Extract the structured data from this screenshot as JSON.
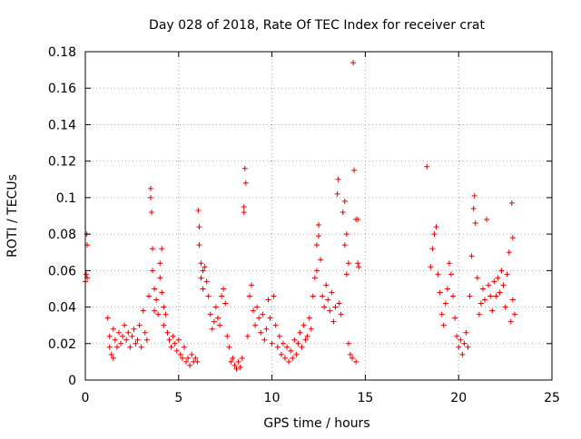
{
  "chart_data": {
    "type": "scatter",
    "title": "Day 028 of 2018, Rate Of TEC Index for receiver crat",
    "xlabel": "GPS time / hours",
    "ylabel": "ROTI / TECUs",
    "xlim": [
      0,
      25
    ],
    "ylim": [
      0,
      0.18
    ],
    "xticks": [
      0,
      5,
      10,
      15,
      20,
      25
    ],
    "yticks": [
      0,
      0.02,
      0.04,
      0.06,
      0.08,
      0.1,
      0.12,
      0.14,
      0.16,
      0.18
    ],
    "xtick_labels": [
      "0",
      "5",
      "10",
      "15",
      "20",
      "25"
    ],
    "ytick_labels": [
      "0",
      "0.02",
      "0.04",
      "0.06",
      "0.08",
      "0.1",
      "0.12",
      "0.14",
      "0.16",
      "0.18"
    ],
    "grid": true,
    "marker": "+",
    "color": "#e00000",
    "series": [
      {
        "points": [
          [
            0.0,
            0.054
          ],
          [
            0.05,
            0.058
          ],
          [
            0.08,
            0.08
          ],
          [
            0.1,
            0.074
          ],
          [
            0.1,
            0.056
          ],
          [
            1.2,
            0.034
          ],
          [
            1.3,
            0.024
          ],
          [
            1.3,
            0.018
          ],
          [
            1.4,
            0.014
          ],
          [
            1.5,
            0.028
          ],
          [
            1.5,
            0.012
          ],
          [
            1.6,
            0.022
          ],
          [
            1.7,
            0.018
          ],
          [
            1.8,
            0.026
          ],
          [
            1.9,
            0.02
          ],
          [
            2.0,
            0.024
          ],
          [
            2.1,
            0.03
          ],
          [
            2.2,
            0.022
          ],
          [
            2.3,
            0.026
          ],
          [
            2.4,
            0.018
          ],
          [
            2.5,
            0.024
          ],
          [
            2.6,
            0.028
          ],
          [
            2.7,
            0.02
          ],
          [
            2.8,
            0.022
          ],
          [
            2.9,
            0.03
          ],
          [
            3.0,
            0.018
          ],
          [
            3.1,
            0.038
          ],
          [
            3.2,
            0.026
          ],
          [
            3.3,
            0.022
          ],
          [
            3.4,
            0.046
          ],
          [
            3.5,
            0.105
          ],
          [
            3.5,
            0.1
          ],
          [
            3.55,
            0.092
          ],
          [
            3.6,
            0.072
          ],
          [
            3.6,
            0.06
          ],
          [
            3.7,
            0.05
          ],
          [
            3.7,
            0.038
          ],
          [
            3.8,
            0.044
          ],
          [
            3.9,
            0.036
          ],
          [
            4.0,
            0.064
          ],
          [
            4.0,
            0.056
          ],
          [
            4.1,
            0.072
          ],
          [
            4.1,
            0.048
          ],
          [
            4.2,
            0.04
          ],
          [
            4.2,
            0.03
          ],
          [
            4.3,
            0.036
          ],
          [
            4.4,
            0.026
          ],
          [
            4.5,
            0.022
          ],
          [
            4.6,
            0.018
          ],
          [
            4.7,
            0.024
          ],
          [
            4.8,
            0.02
          ],
          [
            4.9,
            0.016
          ],
          [
            5.0,
            0.022
          ],
          [
            5.1,
            0.014
          ],
          [
            5.2,
            0.012
          ],
          [
            5.3,
            0.018
          ],
          [
            5.4,
            0.01
          ],
          [
            5.5,
            0.012
          ],
          [
            5.6,
            0.008
          ],
          [
            5.7,
            0.014
          ],
          [
            5.8,
            0.01
          ],
          [
            5.9,
            0.012
          ],
          [
            6.0,
            0.01
          ],
          [
            6.05,
            0.093
          ],
          [
            6.1,
            0.084
          ],
          [
            6.1,
            0.074
          ],
          [
            6.2,
            0.064
          ],
          [
            6.2,
            0.056
          ],
          [
            6.3,
            0.06
          ],
          [
            6.3,
            0.05
          ],
          [
            6.4,
            0.062
          ],
          [
            6.5,
            0.054
          ],
          [
            6.6,
            0.046
          ],
          [
            6.7,
            0.036
          ],
          [
            6.8,
            0.028
          ],
          [
            6.9,
            0.032
          ],
          [
            7.0,
            0.04
          ],
          [
            7.1,
            0.034
          ],
          [
            7.2,
            0.03
          ],
          [
            7.3,
            0.046
          ],
          [
            7.4,
            0.05
          ],
          [
            7.5,
            0.042
          ],
          [
            7.6,
            0.024
          ],
          [
            7.7,
            0.018
          ],
          [
            7.8,
            0.01
          ],
          [
            7.9,
            0.012
          ],
          [
            8.0,
            0.008
          ],
          [
            8.1,
            0.006
          ],
          [
            8.2,
            0.01
          ],
          [
            8.3,
            0.007
          ],
          [
            8.4,
            0.012
          ],
          [
            8.5,
            0.095
          ],
          [
            8.5,
            0.092
          ],
          [
            8.55,
            0.116
          ],
          [
            8.6,
            0.108
          ],
          [
            8.7,
            0.024
          ],
          [
            8.8,
            0.046
          ],
          [
            8.9,
            0.052
          ],
          [
            9.0,
            0.038
          ],
          [
            9.1,
            0.03
          ],
          [
            9.2,
            0.04
          ],
          [
            9.3,
            0.034
          ],
          [
            9.4,
            0.026
          ],
          [
            9.5,
            0.036
          ],
          [
            9.6,
            0.022
          ],
          [
            9.7,
            0.028
          ],
          [
            9.8,
            0.044
          ],
          [
            9.9,
            0.034
          ],
          [
            10.0,
            0.02
          ],
          [
            10.1,
            0.046
          ],
          [
            10.2,
            0.03
          ],
          [
            10.3,
            0.018
          ],
          [
            10.4,
            0.024
          ],
          [
            10.5,
            0.014
          ],
          [
            10.6,
            0.02
          ],
          [
            10.7,
            0.012
          ],
          [
            10.8,
            0.018
          ],
          [
            10.9,
            0.01
          ],
          [
            11.0,
            0.016
          ],
          [
            11.1,
            0.012
          ],
          [
            11.2,
            0.022
          ],
          [
            11.3,
            0.014
          ],
          [
            11.4,
            0.02
          ],
          [
            11.5,
            0.026
          ],
          [
            11.6,
            0.018
          ],
          [
            11.7,
            0.03
          ],
          [
            11.8,
            0.022
          ],
          [
            11.9,
            0.024
          ],
          [
            12.0,
            0.034
          ],
          [
            12.1,
            0.028
          ],
          [
            12.2,
            0.046
          ],
          [
            12.3,
            0.056
          ],
          [
            12.4,
            0.06
          ],
          [
            12.4,
            0.074
          ],
          [
            12.5,
            0.085
          ],
          [
            12.5,
            0.079
          ],
          [
            12.6,
            0.066
          ],
          [
            12.7,
            0.046
          ],
          [
            12.8,
            0.04
          ],
          [
            12.9,
            0.052
          ],
          [
            13.0,
            0.044
          ],
          [
            13.1,
            0.038
          ],
          [
            13.2,
            0.048
          ],
          [
            13.3,
            0.032
          ],
          [
            13.4,
            0.04
          ],
          [
            13.5,
            0.102
          ],
          [
            13.55,
            0.11
          ],
          [
            13.6,
            0.042
          ],
          [
            13.7,
            0.036
          ],
          [
            13.8,
            0.092
          ],
          [
            13.9,
            0.098
          ],
          [
            13.9,
            0.074
          ],
          [
            14.0,
            0.08
          ],
          [
            14.0,
            0.058
          ],
          [
            14.1,
            0.064
          ],
          [
            14.1,
            0.02
          ],
          [
            14.2,
            0.014
          ],
          [
            14.3,
            0.012
          ],
          [
            14.35,
            0.174
          ],
          [
            14.4,
            0.115
          ],
          [
            14.5,
            0.01
          ],
          [
            14.5,
            0.088
          ],
          [
            14.6,
            0.088
          ],
          [
            14.6,
            0.064
          ],
          [
            14.65,
            0.062
          ],
          [
            18.3,
            0.117
          ],
          [
            18.5,
            0.062
          ],
          [
            18.6,
            0.072
          ],
          [
            18.7,
            0.08
          ],
          [
            18.8,
            0.084
          ],
          [
            18.9,
            0.058
          ],
          [
            19.0,
            0.048
          ],
          [
            19.1,
            0.036
          ],
          [
            19.2,
            0.03
          ],
          [
            19.3,
            0.042
          ],
          [
            19.4,
            0.05
          ],
          [
            19.5,
            0.064
          ],
          [
            19.6,
            0.058
          ],
          [
            19.7,
            0.046
          ],
          [
            19.8,
            0.034
          ],
          [
            19.9,
            0.024
          ],
          [
            20.0,
            0.018
          ],
          [
            20.1,
            0.022
          ],
          [
            20.2,
            0.014
          ],
          [
            20.3,
            0.02
          ],
          [
            20.4,
            0.026
          ],
          [
            20.5,
            0.018
          ],
          [
            20.6,
            0.046
          ],
          [
            20.7,
            0.068
          ],
          [
            20.8,
            0.094
          ],
          [
            20.85,
            0.101
          ],
          [
            20.9,
            0.086
          ],
          [
            21.0,
            0.056
          ],
          [
            21.1,
            0.036
          ],
          [
            21.2,
            0.042
          ],
          [
            21.3,
            0.05
          ],
          [
            21.4,
            0.044
          ],
          [
            21.5,
            0.088
          ],
          [
            21.6,
            0.052
          ],
          [
            21.7,
            0.046
          ],
          [
            21.8,
            0.038
          ],
          [
            21.9,
            0.054
          ],
          [
            22.0,
            0.046
          ],
          [
            22.1,
            0.056
          ],
          [
            22.2,
            0.048
          ],
          [
            22.3,
            0.06
          ],
          [
            22.4,
            0.052
          ],
          [
            22.5,
            0.04
          ],
          [
            22.6,
            0.058
          ],
          [
            22.7,
            0.07
          ],
          [
            22.8,
            0.032
          ],
          [
            22.85,
            0.097
          ],
          [
            22.9,
            0.044
          ],
          [
            22.9,
            0.078
          ],
          [
            23.0,
            0.036
          ]
        ]
      }
    ]
  }
}
